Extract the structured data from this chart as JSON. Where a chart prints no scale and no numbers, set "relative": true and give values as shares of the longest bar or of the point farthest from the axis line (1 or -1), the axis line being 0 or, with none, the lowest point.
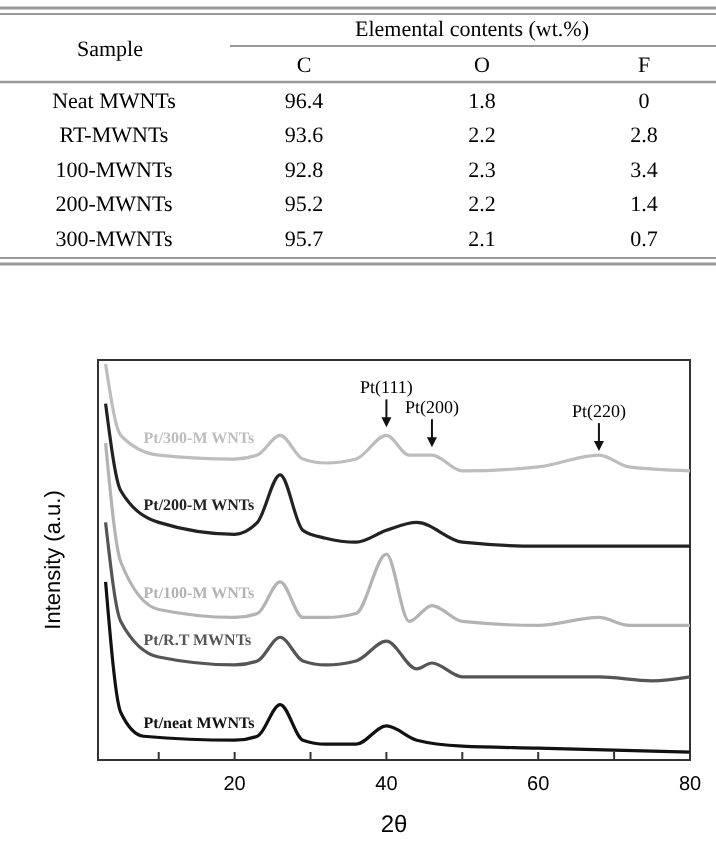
{
  "chart_data": [
    {
      "type": "heatmap",
      "title": "Elemental contents (wt.%)",
      "ylabel": "Sample",
      "categories": [
        "C",
        "O",
        "F"
      ],
      "y_categories": [
        "Neat MWNTs",
        "RT-MWNTs",
        "100-MWNTs",
        "200-MWNTs",
        "300-MWNTs"
      ],
      "cells": [
        [
          96.4,
          1.8,
          0
        ],
        [
          93.6,
          2.2,
          2.8
        ],
        [
          92.8,
          2.3,
          3.4
        ],
        [
          95.2,
          2.2,
          1.4
        ],
        [
          95.7,
          2.1,
          0.7
        ]
      ],
      "data_labels": true
    },
    {
      "type": "line",
      "relative": true,
      "xlabel": "2θ",
      "ylabel": "Intensity (a.u.)",
      "xlim": [
        2,
        80
      ],
      "xticks": [
        {
          "value": 10,
          "label": null
        },
        20,
        {
          "value": 30,
          "label": null
        },
        40,
        {
          "value": 50,
          "label": null
        },
        60,
        {
          "value": 70,
          "label": null
        },
        80
      ],
      "marker": "none",
      "series": [
        {
          "name": "Pt/300-M WNTs",
          "color": "#bdbdbd",
          "x": [
            3,
            5,
            10,
            20,
            23,
            26,
            29,
            32,
            36,
            40,
            43,
            46,
            50,
            60,
            68,
            72,
            80
          ],
          "values": [
            1.0,
            0.82,
            0.77,
            0.76,
            0.77,
            0.82,
            0.76,
            0.75,
            0.76,
            0.82,
            0.77,
            0.77,
            0.73,
            0.74,
            0.77,
            0.74,
            0.73
          ]
        },
        {
          "name": "Pt/200-M WNTs",
          "color": "#222222",
          "x": [
            3,
            5,
            10,
            20,
            23,
            26,
            29,
            32,
            36,
            40,
            44,
            50,
            60,
            70,
            80
          ],
          "values": [
            0.9,
            0.68,
            0.6,
            0.57,
            0.6,
            0.72,
            0.58,
            0.56,
            0.55,
            0.58,
            0.6,
            0.55,
            0.54,
            0.54,
            0.54
          ]
        },
        {
          "name": "Pt/100-M WNTs",
          "color": "#b3b3b3",
          "x": [
            3,
            5,
            10,
            20,
            23,
            26,
            29,
            32,
            36,
            40,
            43,
            46,
            50,
            60,
            68,
            72,
            80
          ],
          "values": [
            0.8,
            0.5,
            0.38,
            0.36,
            0.37,
            0.45,
            0.36,
            0.36,
            0.37,
            0.52,
            0.35,
            0.39,
            0.35,
            0.34,
            0.36,
            0.34,
            0.34
          ]
        },
        {
          "name": "Pt/R.T MWNTs",
          "color": "#555555",
          "x": [
            3,
            5,
            10,
            20,
            23,
            26,
            29,
            32,
            36,
            40,
            44,
            46,
            50,
            60,
            68,
            75,
            80
          ],
          "values": [
            0.6,
            0.35,
            0.26,
            0.24,
            0.25,
            0.31,
            0.25,
            0.24,
            0.25,
            0.3,
            0.23,
            0.245,
            0.21,
            0.21,
            0.21,
            0.2,
            0.21
          ]
        },
        {
          "name": "Pt/neat MWNTs",
          "color": "#111111",
          "x": [
            3,
            5,
            8,
            20,
            23,
            26,
            29,
            32,
            36,
            40,
            44,
            50,
            60,
            70,
            80
          ],
          "values": [
            0.45,
            0.12,
            0.06,
            0.05,
            0.06,
            0.14,
            0.05,
            0.04,
            0.04,
            0.086,
            0.05,
            0.035,
            0.03,
            0.025,
            0.02
          ]
        }
      ],
      "annotations": [
        {
          "text": "Pt(111)",
          "x": 40,
          "y": 0.84
        },
        {
          "text": "Pt(200)",
          "x": 46,
          "y": 0.79
        },
        {
          "text": "Pt(220)",
          "x": 68,
          "y": 0.78
        }
      ]
    }
  ]
}
